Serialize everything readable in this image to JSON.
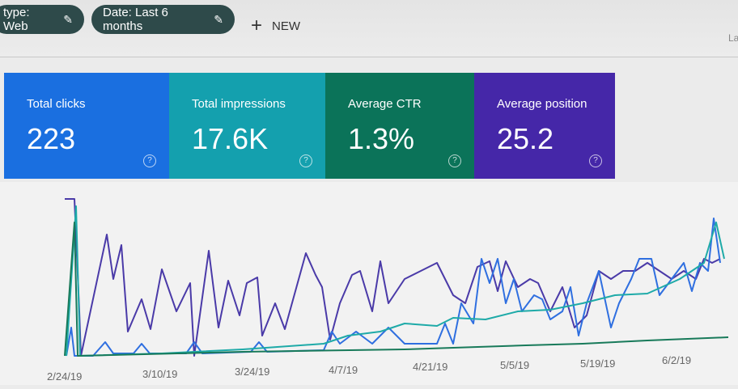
{
  "filters": [
    {
      "label": "type: Web",
      "icon": "pencil-icon"
    },
    {
      "label": "Date: Last 6 months",
      "icon": "pencil-icon"
    }
  ],
  "new_button": {
    "label": "NEW",
    "icon": "plus-icon"
  },
  "header_right_text": "La",
  "cards": [
    {
      "label": "Total clicks",
      "value": "223",
      "color": "#1a6fe0"
    },
    {
      "label": "Total impressions",
      "value": "17.6K",
      "color": "#14a0ae"
    },
    {
      "label": "Average CTR",
      "value": "1.3%",
      "color": "#0b7359"
    },
    {
      "label": "Average position",
      "value": "25.2",
      "color": "#4527a8"
    }
  ],
  "chart": {
    "x_labels": [
      "2/24/19",
      "3/10/19",
      "3/24/19",
      "4/7/19",
      "4/21/19",
      "5/5/19",
      "5/19/19",
      "6/2/19"
    ],
    "series_colors": {
      "clicks": "#2f6fe0",
      "impressions": "#1eaaa8",
      "ctr": "#187a5a",
      "position": "#4a3aa8"
    }
  }
}
